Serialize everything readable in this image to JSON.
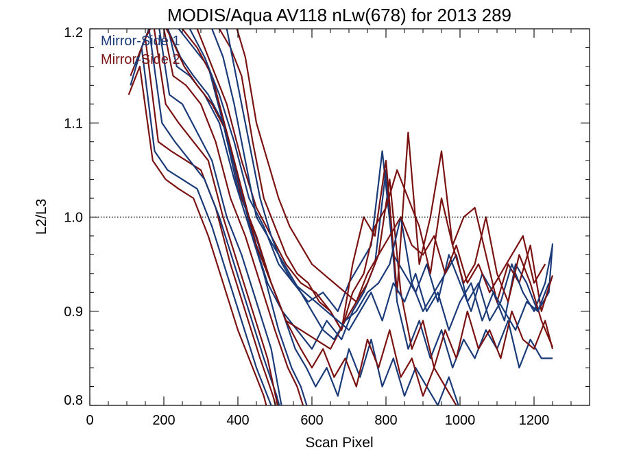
{
  "chart_data": {
    "type": "line",
    "title": "MODIS/Aqua AV118 nLw(678) for 2013 289",
    "xlabel": "Scan Pixel",
    "ylabel": "L2/L3",
    "xlim": [
      0,
      1350
    ],
    "ylim": [
      0.8,
      1.2
    ],
    "x_ticks": [
      0,
      200,
      400,
      600,
      800,
      1000,
      1200
    ],
    "x_tick_labels": [
      "0",
      "200",
      "400",
      "600",
      "800",
      "1000",
      "1200"
    ],
    "y_ticks": [
      0.8,
      0.9,
      1.0,
      1.1,
      1.2
    ],
    "y_tick_labels": [
      "0.8",
      "0.9",
      "1.0",
      "1.1",
      "1.2"
    ],
    "x_minor_step": 50,
    "y_minor_step": 0.02,
    "reference_line": 1.0,
    "legend": {
      "position": "top-left",
      "entries": [
        {
          "label": "Mirror-Side 1",
          "color": "#1a3a78"
        },
        {
          "label": "Mirror-Side 2",
          "color": "#7a1212"
        }
      ]
    },
    "series_colors": {
      "Mirror-Side 1": "#1a3a78",
      "Mirror-Side 2": "#7a1212"
    },
    "lines": [
      {
        "group": "Mirror-Side 2",
        "x": [
          105,
          135,
          170,
          205,
          240,
          280,
          320,
          360,
          400,
          440,
          470,
          480
        ],
        "y": [
          1.13,
          1.16,
          1.06,
          1.04,
          1.03,
          1.02,
          0.98,
          0.93,
          0.88,
          0.84,
          0.81,
          0.795
        ]
      },
      {
        "group": "Mirror-Side 1",
        "x": [
          110,
          140,
          175,
          210,
          250,
          290,
          330,
          370,
          410,
          450,
          480,
          495
        ],
        "y": [
          1.14,
          1.18,
          1.07,
          1.05,
          1.04,
          1.03,
          0.99,
          0.94,
          0.89,
          0.84,
          0.81,
          0.795
        ]
      },
      {
        "group": "Mirror-Side 2",
        "x": [
          110,
          150,
          185,
          220,
          260,
          300,
          340,
          380,
          420,
          460,
          495,
          505
        ],
        "y": [
          1.15,
          1.19,
          1.08,
          1.07,
          1.06,
          1.05,
          1.01,
          0.95,
          0.9,
          0.85,
          0.81,
          0.795
        ]
      },
      {
        "group": "Mirror-Side 1",
        "x": [
          120,
          160,
          195,
          230,
          270,
          310,
          350,
          390,
          430,
          470,
          505,
          515
        ],
        "y": [
          1.16,
          1.2,
          1.1,
          1.08,
          1.06,
          1.04,
          1.0,
          0.95,
          0.9,
          0.85,
          0.81,
          0.795
        ]
      },
      {
        "group": "Mirror-Side 2",
        "x": [
          130,
          170,
          205,
          240,
          280,
          320,
          360,
          400,
          440,
          480,
          510
        ],
        "y": [
          1.17,
          1.21,
          1.12,
          1.1,
          1.08,
          1.06,
          1.0,
          0.95,
          0.9,
          0.85,
          0.795
        ]
      },
      {
        "group": "Mirror-Side 1",
        "x": [
          140,
          180,
          215,
          250,
          290,
          330,
          370,
          410,
          450,
          490,
          520
        ],
        "y": [
          1.18,
          1.22,
          1.13,
          1.12,
          1.09,
          1.06,
          1.0,
          0.96,
          0.91,
          0.86,
          0.795
        ]
      },
      {
        "group": "Mirror-Side 2",
        "x": [
          150,
          190,
          225,
          260,
          300,
          340,
          380,
          420,
          460,
          500,
          535,
          560,
          580
        ],
        "y": [
          1.19,
          1.22,
          1.15,
          1.14,
          1.12,
          1.08,
          1.02,
          0.98,
          0.93,
          0.88,
          0.84,
          0.82,
          0.795
        ]
      },
      {
        "group": "Mirror-Side 1",
        "x": [
          160,
          200,
          235,
          270,
          310,
          350,
          390,
          430,
          470,
          510,
          545,
          570,
          590
        ],
        "y": [
          1.2,
          1.22,
          1.16,
          1.15,
          1.13,
          1.1,
          1.04,
          0.99,
          0.94,
          0.88,
          0.84,
          0.82,
          0.795
        ]
      },
      {
        "group": "Mirror-Side 1",
        "x": [
          170,
          210,
          245,
          280,
          320,
          360,
          400,
          440,
          480,
          520,
          555,
          585,
          610,
          640,
          670,
          700,
          730,
          760,
          790,
          820,
          850,
          880,
          910,
          940,
          970,
          1000
        ],
        "y": [
          1.21,
          1.2,
          1.17,
          1.15,
          1.13,
          1.1,
          1.03,
          0.99,
          0.94,
          0.9,
          0.86,
          0.84,
          0.82,
          0.84,
          0.81,
          0.86,
          0.83,
          0.87,
          0.82,
          0.85,
          0.81,
          0.84,
          0.82,
          0.8,
          0.83,
          0.795
        ]
      },
      {
        "group": "Mirror-Side 2",
        "x": [
          180,
          220,
          255,
          290,
          330,
          370,
          410,
          450,
          490,
          530,
          570,
          600,
          630,
          660,
          690,
          720,
          750,
          780,
          810,
          840,
          870,
          900,
          930,
          960,
          990,
          1020
        ],
        "y": [
          1.22,
          1.19,
          1.16,
          1.14,
          1.12,
          1.09,
          1.02,
          0.98,
          0.93,
          0.89,
          0.86,
          0.84,
          0.86,
          0.83,
          0.85,
          0.82,
          0.87,
          0.84,
          0.88,
          0.83,
          0.85,
          0.81,
          0.84,
          0.82,
          0.8,
          0.795
        ]
      },
      {
        "group": "Mirror-Side 1",
        "x": [
          200,
          240,
          280,
          320,
          360,
          400,
          440,
          480,
          520,
          560,
          600,
          640,
          680,
          710,
          740,
          770,
          800,
          830,
          860,
          890,
          920,
          950,
          980,
          1010,
          1040,
          1070,
          1100,
          1130,
          1160,
          1190,
          1220,
          1250
        ],
        "y": [
          1.21,
          1.2,
          1.18,
          1.16,
          1.1,
          1.04,
          0.98,
          0.93,
          0.9,
          0.88,
          0.86,
          0.89,
          0.87,
          0.9,
          0.92,
          0.95,
          1.05,
          0.91,
          0.86,
          0.89,
          0.85,
          0.88,
          0.84,
          0.87,
          0.85,
          0.88,
          0.86,
          0.89,
          0.84,
          0.87,
          0.85,
          0.85
        ]
      },
      {
        "group": "Mirror-Side 2",
        "x": [
          210,
          250,
          290,
          330,
          370,
          410,
          450,
          490,
          530,
          570,
          610,
          650,
          690,
          720,
          750,
          780,
          810,
          840,
          870,
          900,
          930,
          960,
          990,
          1020,
          1050,
          1080,
          1110,
          1140,
          1170,
          1200,
          1230,
          1250
        ],
        "y": [
          1.21,
          1.2,
          1.18,
          1.15,
          1.09,
          1.03,
          0.97,
          0.93,
          0.89,
          0.88,
          0.87,
          0.86,
          0.89,
          0.91,
          0.93,
          0.96,
          1.04,
          0.92,
          0.86,
          0.89,
          0.84,
          0.88,
          0.85,
          0.9,
          0.86,
          0.88,
          0.85,
          0.9,
          0.87,
          0.86,
          0.89,
          0.86
        ]
      },
      {
        "group": "Mirror-Side 1",
        "x": [
          230,
          270,
          310,
          350,
          390,
          430,
          470,
          510,
          550,
          590,
          630,
          670,
          700,
          730,
          760,
          790,
          820,
          850,
          880,
          910,
          940,
          970,
          1000,
          1030,
          1060,
          1090,
          1120,
          1150,
          1180,
          1210,
          1240,
          1250
        ],
        "y": [
          1.22,
          1.2,
          1.17,
          1.13,
          1.08,
          1.02,
          0.99,
          0.95,
          0.93,
          0.91,
          0.92,
          0.9,
          0.93,
          0.95,
          0.97,
          1.07,
          0.96,
          0.94,
          0.92,
          0.95,
          0.91,
          0.96,
          0.93,
          0.9,
          0.94,
          0.92,
          0.89,
          0.95,
          0.93,
          0.9,
          0.92,
          0.972
        ]
      },
      {
        "group": "Mirror-Side 2",
        "x": [
          250,
          290,
          330,
          370,
          410,
          450,
          490,
          530,
          570,
          610,
          650,
          680,
          710,
          740,
          770,
          800,
          830,
          860,
          890,
          920,
          950,
          980,
          1010,
          1040,
          1070,
          1100,
          1130,
          1160,
          1190,
          1220,
          1250
        ],
        "y": [
          1.22,
          1.2,
          1.16,
          1.12,
          1.06,
          1.01,
          0.98,
          0.95,
          0.93,
          0.92,
          0.9,
          0.88,
          0.95,
          1.0,
          0.98,
          1.06,
          0.92,
          1.09,
          0.95,
          1.0,
          1.07,
          0.97,
          1.0,
          1.01,
          0.96,
          0.91,
          0.95,
          0.93,
          0.97,
          0.9,
          0.938
        ]
      },
      {
        "group": "Mirror-Side 1",
        "x": [
          270,
          300,
          330,
          360,
          390,
          420,
          450,
          480,
          510,
          540,
          570,
          600,
          630,
          660,
          690,
          720,
          750,
          780,
          810,
          840,
          870,
          900,
          930,
          960,
          990,
          1020,
          1050,
          1080,
          1110,
          1140,
          1170,
          1200,
          1230,
          1250
        ],
        "y": [
          1.22,
          1.21,
          1.2,
          1.17,
          1.12,
          1.06,
          1.0,
          0.98,
          0.96,
          0.94,
          0.92,
          0.9,
          0.88,
          0.87,
          0.89,
          0.9,
          0.92,
          0.93,
          0.95,
          1.0,
          0.93,
          0.9,
          0.92,
          0.94,
          0.96,
          0.91,
          0.93,
          0.89,
          0.91,
          0.95,
          0.92,
          0.9,
          0.93,
          0.97
        ]
      },
      {
        "group": "Mirror-Side 2",
        "x": [
          290,
          320,
          350,
          380,
          410,
          440,
          470,
          500,
          530,
          560,
          590,
          620,
          650,
          680,
          710,
          740,
          770,
          800,
          830,
          860,
          890,
          920,
          950,
          980,
          1010,
          1040,
          1070,
          1100,
          1130,
          1160,
          1190,
          1220,
          1250
        ],
        "y": [
          1.22,
          1.21,
          1.2,
          1.18,
          1.15,
          1.08,
          1.02,
          0.99,
          0.96,
          0.94,
          0.93,
          0.91,
          0.9,
          0.88,
          0.92,
          0.94,
          0.99,
          1.01,
          1.05,
          1.02,
          0.99,
          0.94,
          1.02,
          0.97,
          0.93,
          0.95,
          1.0,
          0.94,
          0.91,
          0.96,
          0.93,
          0.89,
          0.862
        ]
      },
      {
        "group": "Mirror-Side 1",
        "x": [
          340,
          370,
          400,
          430,
          460,
          490,
          520,
          550,
          580,
          610,
          640,
          670,
          700,
          730,
          760,
          790,
          820,
          850,
          880,
          910,
          940,
          970,
          1000,
          1030,
          1060,
          1090,
          1120,
          1150,
          1180,
          1210,
          1240
        ],
        "y": [
          1.22,
          1.2,
          1.14,
          1.08,
          1.02,
          0.98,
          0.95,
          0.93,
          0.92,
          0.91,
          0.9,
          0.89,
          0.88,
          0.9,
          0.92,
          0.89,
          0.93,
          0.91,
          0.94,
          0.9,
          0.92,
          0.88,
          0.91,
          0.93,
          0.89,
          0.92,
          0.9,
          0.88,
          0.91,
          0.9,
          0.93
        ]
      },
      {
        "group": "Mirror-Side 2",
        "x": [
          360,
          390,
          420,
          450,
          480,
          510,
          540,
          570,
          600,
          630,
          660,
          690,
          720,
          750,
          780,
          810,
          840,
          870,
          900,
          930,
          960,
          990,
          1020,
          1050,
          1080,
          1110,
          1140,
          1170,
          1200,
          1230
        ],
        "y": [
          1.22,
          1.21,
          1.17,
          1.1,
          1.06,
          1.02,
          0.99,
          0.97,
          0.95,
          0.94,
          0.93,
          0.92,
          0.91,
          0.94,
          0.96,
          0.98,
          1.0,
          0.97,
          0.96,
          0.98,
          0.94,
          0.97,
          0.93,
          0.95,
          0.92,
          0.94,
          0.96,
          0.98,
          0.93,
          0.95
        ]
      }
    ]
  }
}
